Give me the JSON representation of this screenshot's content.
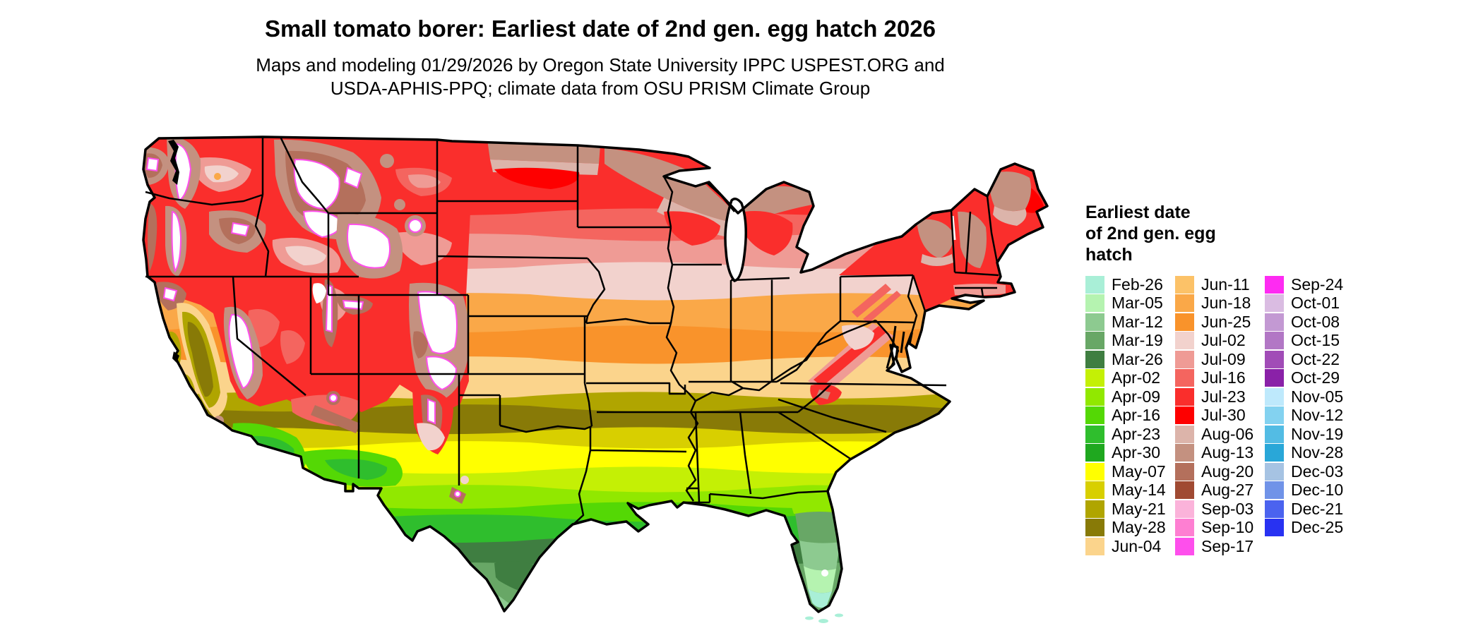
{
  "header": {
    "title": "Small tomato borer: Earliest date of 2nd gen. egg hatch 2026",
    "subtitle_line1": "Maps and modeling 01/29/2026 by Oregon State University IPPC USPEST.ORG and",
    "subtitle_line2": "USDA-APHIS-PPQ; climate data from OSU PRISM Climate Group"
  },
  "legend": {
    "title_lines": [
      "Earliest date",
      "of 2nd gen. egg",
      "hatch"
    ],
    "columns": [
      [
        {
          "date": "Feb-26",
          "color": "#a9efd7"
        },
        {
          "date": "Mar-05",
          "color": "#b5f3b0"
        },
        {
          "date": "Mar-12",
          "color": "#8dca90"
        },
        {
          "date": "Mar-19",
          "color": "#68a766"
        },
        {
          "date": "Mar-26",
          "color": "#3f7e41"
        },
        {
          "date": "Apr-02",
          "color": "#c4f005"
        },
        {
          "date": "Apr-09",
          "color": "#91e800"
        },
        {
          "date": "Apr-16",
          "color": "#54d805"
        },
        {
          "date": "Apr-23",
          "color": "#2fbe2d"
        },
        {
          "date": "Apr-30",
          "color": "#1fa81f"
        },
        {
          "date": "May-07",
          "color": "#ffff00"
        },
        {
          "date": "May-14",
          "color": "#d8cf00"
        },
        {
          "date": "May-21",
          "color": "#b0a500"
        },
        {
          "date": "May-28",
          "color": "#887a07"
        },
        {
          "date": "Jun-04",
          "color": "#fbd48c"
        }
      ],
      [
        {
          "date": "Jun-11",
          "color": "#fcc268"
        },
        {
          "date": "Jun-18",
          "color": "#faa848"
        },
        {
          "date": "Jun-25",
          "color": "#f9932b"
        },
        {
          "date": "Jul-02",
          "color": "#f2d2cd"
        },
        {
          "date": "Jul-09",
          "color": "#ef9b95"
        },
        {
          "date": "Jul-16",
          "color": "#f4655f"
        },
        {
          "date": "Jul-23",
          "color": "#fa2e2c"
        },
        {
          "date": "Jul-30",
          "color": "#fe0000"
        },
        {
          "date": "Aug-06",
          "color": "#dcb4aa"
        },
        {
          "date": "Aug-13",
          "color": "#c49180"
        },
        {
          "date": "Aug-20",
          "color": "#b4705c"
        },
        {
          "date": "Aug-27",
          "color": "#a04a32"
        },
        {
          "date": "Sep-03",
          "color": "#fbb3da"
        },
        {
          "date": "Sep-10",
          "color": "#fe7fd2"
        },
        {
          "date": "Sep-17",
          "color": "#fe4fec"
        }
      ],
      [
        {
          "date": "Sep-24",
          "color": "#fe2bf2"
        },
        {
          "date": "Oct-01",
          "color": "#dabce2"
        },
        {
          "date": "Oct-08",
          "color": "#c399d3"
        },
        {
          "date": "Oct-15",
          "color": "#b277c5"
        },
        {
          "date": "Oct-22",
          "color": "#a14cb7"
        },
        {
          "date": "Oct-29",
          "color": "#8a21a8"
        },
        {
          "date": "Nov-05",
          "color": "#bee9fc"
        },
        {
          "date": "Nov-12",
          "color": "#83d2f0"
        },
        {
          "date": "Nov-19",
          "color": "#53bce4"
        },
        {
          "date": "Nov-28",
          "color": "#29a7d8"
        },
        {
          "date": "Dec-03",
          "color": "#a6c3e3"
        },
        {
          "date": "Dec-10",
          "color": "#7093e8"
        },
        {
          "date": "Dec-21",
          "color": "#4b63ef"
        },
        {
          "date": "Dec-25",
          "color": "#2832f2"
        }
      ]
    ]
  }
}
